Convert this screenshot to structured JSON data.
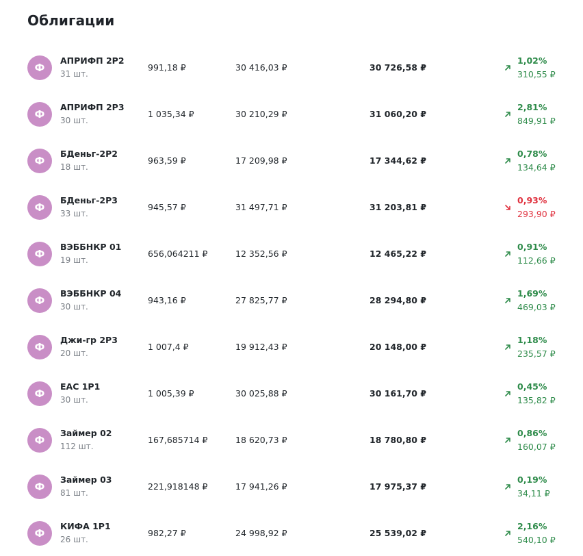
{
  "page": {
    "title": "Облигации"
  },
  "colors": {
    "avatar": "#c98ec6",
    "gain": "#2e8b4a",
    "loss": "#e0323f"
  },
  "icons": {
    "avatar_letter": "Ф",
    "up": "arrow-up-right-icon",
    "down": "arrow-down-right-icon"
  },
  "bonds": [
    {
      "name": "АПРИФП 2Р2",
      "qty": "31 шт.",
      "price": "991,18 ₽",
      "invested": "30 416,03 ₽",
      "value": "30 726,58 ₽",
      "change_pct": "1,02%",
      "change_abs": "310,55 ₽",
      "direction": "up"
    },
    {
      "name": "АПРИФП 2Р3",
      "qty": "30 шт.",
      "price": "1 035,34 ₽",
      "invested": "30 210,29 ₽",
      "value": "31 060,20 ₽",
      "change_pct": "2,81%",
      "change_abs": "849,91 ₽",
      "direction": "up"
    },
    {
      "name": "БДеньг-2Р2",
      "qty": "18 шт.",
      "price": "963,59 ₽",
      "invested": "17 209,98 ₽",
      "value": "17 344,62 ₽",
      "change_pct": "0,78%",
      "change_abs": "134,64 ₽",
      "direction": "up"
    },
    {
      "name": "БДеньг-2Р3",
      "qty": "33 шт.",
      "price": "945,57 ₽",
      "invested": "31 497,71 ₽",
      "value": "31 203,81 ₽",
      "change_pct": "0,93%",
      "change_abs": "293,90 ₽",
      "direction": "down"
    },
    {
      "name": "ВЭББНКР 01",
      "qty": "19 шт.",
      "price": "656,064211 ₽",
      "invested": "12 352,56 ₽",
      "value": "12 465,22 ₽",
      "change_pct": "0,91%",
      "change_abs": "112,66 ₽",
      "direction": "up"
    },
    {
      "name": "ВЭББНКР 04",
      "qty": "30 шт.",
      "price": "943,16 ₽",
      "invested": "27 825,77 ₽",
      "value": "28 294,80 ₽",
      "change_pct": "1,69%",
      "change_abs": "469,03 ₽",
      "direction": "up"
    },
    {
      "name": "Джи-гр 2Р3",
      "qty": "20 шт.",
      "price": "1 007,4 ₽",
      "invested": "19 912,43 ₽",
      "value": "20 148,00 ₽",
      "change_pct": "1,18%",
      "change_abs": "235,57 ₽",
      "direction": "up"
    },
    {
      "name": "ЕАС 1Р1",
      "qty": "30 шт.",
      "price": "1 005,39 ₽",
      "invested": "30 025,88 ₽",
      "value": "30 161,70 ₽",
      "change_pct": "0,45%",
      "change_abs": "135,82 ₽",
      "direction": "up"
    },
    {
      "name": "Займер 02",
      "qty": "112 шт.",
      "price": "167,685714 ₽",
      "invested": "18 620,73 ₽",
      "value": "18 780,80 ₽",
      "change_pct": "0,86%",
      "change_abs": "160,07 ₽",
      "direction": "up"
    },
    {
      "name": "Займер 03",
      "qty": "81 шт.",
      "price": "221,918148 ₽",
      "invested": "17 941,26 ₽",
      "value": "17 975,37 ₽",
      "change_pct": "0,19%",
      "change_abs": "34,11 ₽",
      "direction": "up"
    },
    {
      "name": "КИФА 1Р1",
      "qty": "26 шт.",
      "price": "982,27 ₽",
      "invested": "24 998,92 ₽",
      "value": "25 539,02 ₽",
      "change_pct": "2,16%",
      "change_abs": "540,10 ₽",
      "direction": "up"
    }
  ]
}
